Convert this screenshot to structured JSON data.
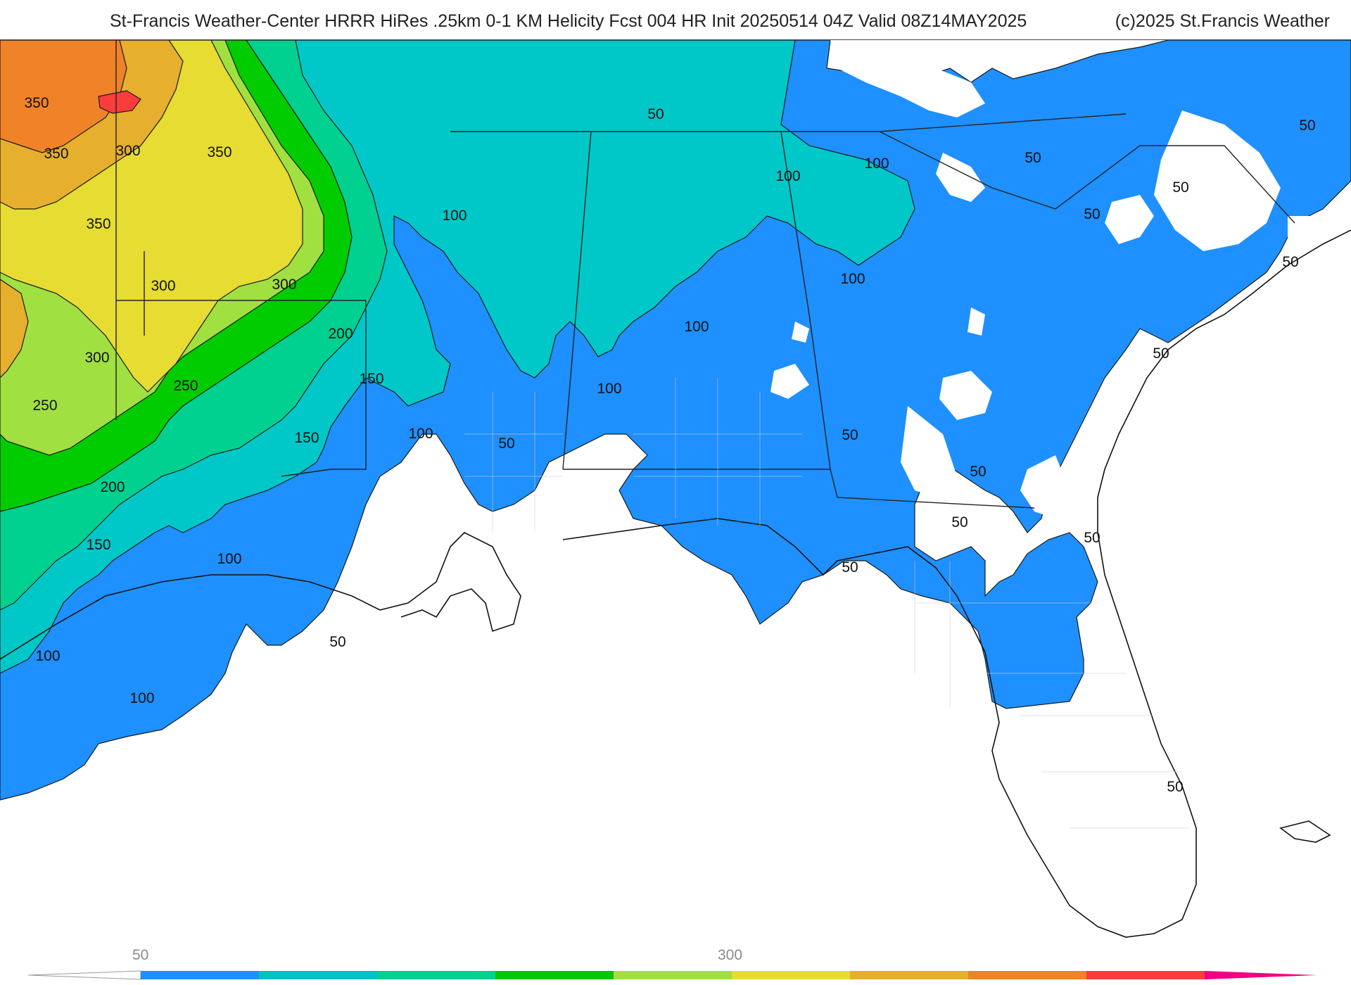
{
  "header": {
    "title": "St-Francis Weather-Center HRRR HiRes .25km 0-1 KM Helicity Fcst 004 HR Init 20250514 04Z  Valid 08Z14MAY2025",
    "credit": "(c)2025 St.Francis Weather"
  },
  "colorbar": {
    "tick_labels": [
      "50",
      "300"
    ],
    "colors": [
      "#ffffff",
      "#1e90ff",
      "#00c0c8",
      "#00d090",
      "#00c800",
      "#a0e040",
      "#e6dc32",
      "#e6af2d",
      "#f08228",
      "#fa3c3c",
      "#f00082"
    ]
  },
  "map": {
    "field": "0-1 KM Helicity",
    "colors": {
      "c50": "#1e90ff",
      "c100": "#00c8c8",
      "c150": "#00d190",
      "c200": "#00cc00",
      "c250": "#a0e040",
      "c300": "#e6dc32",
      "c350": "#e6af2d",
      "c400": "#f08228",
      "c450": "#fa3c3c"
    },
    "contour_labels": [
      {
        "text": "350"
      },
      {
        "text": "350"
      },
      {
        "text": "300"
      },
      {
        "text": "350"
      },
      {
        "text": "350"
      },
      {
        "text": "300"
      },
      {
        "text": "300"
      },
      {
        "text": "200"
      },
      {
        "text": "300"
      },
      {
        "text": "250"
      },
      {
        "text": "250"
      },
      {
        "text": "150"
      },
      {
        "text": "150"
      },
      {
        "text": "200"
      },
      {
        "text": "150"
      },
      {
        "text": "100"
      },
      {
        "text": "100"
      },
      {
        "text": "50"
      },
      {
        "text": "50"
      },
      {
        "text": "100"
      },
      {
        "text": "100"
      },
      {
        "text": "100"
      },
      {
        "text": "50"
      },
      {
        "text": "100"
      },
      {
        "text": "100"
      },
      {
        "text": "100"
      },
      {
        "text": "100"
      },
      {
        "text": "50"
      },
      {
        "text": "50"
      },
      {
        "text": "50"
      },
      {
        "text": "50"
      },
      {
        "text": "50"
      },
      {
        "text": "50"
      },
      {
        "text": "50"
      },
      {
        "text": "50"
      },
      {
        "text": "50"
      },
      {
        "text": "50"
      },
      {
        "text": "50"
      },
      {
        "text": "50"
      },
      {
        "text": "100"
      }
    ]
  }
}
